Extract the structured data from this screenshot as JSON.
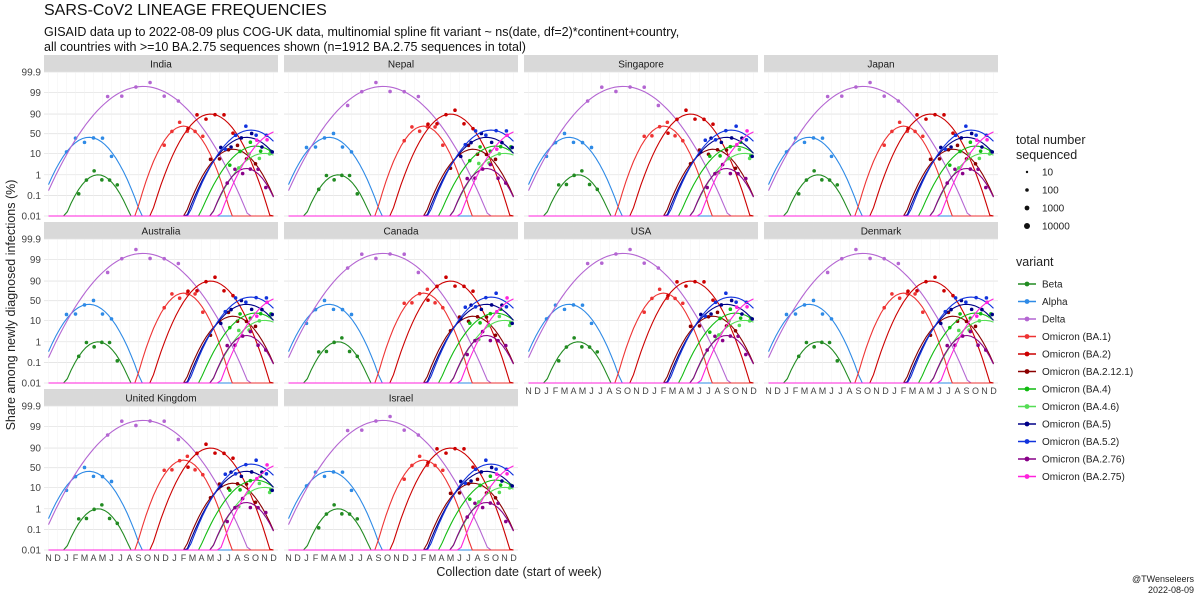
{
  "title": "SARS-CoV2 LINEAGE FREQUENCIES",
  "subtitle_line1": "GISAID data up to 2022-08-09 plus COG-UK data, multinomial spline fit variant ~ ns(date, df=2)*continent+country,",
  "subtitle_line2": "all countries with >=10 BA.2.75 sequences shown (n=1912 BA.2.75 sequences in total)",
  "credit_handle": "@TWenseleers",
  "credit_date": "2022-08-09",
  "chart_data": {
    "type": "line",
    "ylabel": "Share among newly diagnosed infections (%)",
    "xlabel": "Collection date (start of week)",
    "y_scale": "logit",
    "y_ticks": [
      0.01,
      0.1,
      1,
      10,
      50,
      90,
      99,
      99.9
    ],
    "y_tick_labels": [
      "0.01",
      "0.1",
      "1",
      "10",
      "50",
      "90",
      "99",
      "99.9"
    ],
    "x_tick_labels": [
      "N",
      "D",
      "J",
      "F",
      "M",
      "A",
      "M",
      "J",
      "J",
      "A",
      "S",
      "O",
      "N",
      "D",
      "J",
      "F",
      "M",
      "A",
      "M",
      "J",
      "J",
      "A",
      "S",
      "O",
      "N",
      "D"
    ],
    "x_range_months": [
      0,
      26
    ],
    "grid": true,
    "facets": [
      "India",
      "Nepal",
      "Singapore",
      "Japan",
      "Australia",
      "Canada",
      "USA",
      "Denmark",
      "United Kingdom",
      "Israel"
    ],
    "size_legend": {
      "title_line1": "total number",
      "title_line2": "sequenced",
      "levels": [
        "10",
        "100",
        "1000",
        "10000"
      ]
    },
    "variant_legend_title": "variant",
    "series": [
      {
        "name": "Beta",
        "color": "#228B22",
        "peak_month": 5.5,
        "width": 6,
        "peak_share": 1
      },
      {
        "name": "Alpha",
        "color": "#2E8AE6",
        "peak_month": 4.5,
        "width": 7,
        "peak_share": 40
      },
      {
        "name": "Delta",
        "color": "#B466D2",
        "peak_month": 10.5,
        "width": 11,
        "peak_share": 99.5
      },
      {
        "name": "Omicron (BA.1)",
        "color": "#EE3333",
        "peak_month": 15,
        "width": 6,
        "peak_share": 70
      },
      {
        "name": "Omicron (BA.2)",
        "color": "#CC0000",
        "peak_month": 18,
        "width": 7,
        "peak_share": 90
      },
      {
        "name": "Omicron (BA.2.12.1)",
        "color": "#8B0000",
        "peak_month": 20.5,
        "width": 7,
        "peak_share": 15
      },
      {
        "name": "Omicron (BA.4)",
        "color": "#11BB11",
        "peak_month": 23,
        "width": 8,
        "peak_share": 20
      },
      {
        "name": "Omicron (BA.4.6)",
        "color": "#55DD55",
        "peak_month": 24,
        "width": 8,
        "peak_share": 10
      },
      {
        "name": "Omicron (BA.5)",
        "color": "#000088",
        "peak_month": 22,
        "width": 8,
        "peak_share": 40
      },
      {
        "name": "Omicron (BA.5.2)",
        "color": "#1133DD",
        "peak_month": 22.5,
        "width": 8,
        "peak_share": 60
      },
      {
        "name": "Omicron (BA.2.76)",
        "color": "#880088",
        "peak_month": 22,
        "width": 6,
        "peak_share": 2
      },
      {
        "name": "Omicron (BA.2.75)",
        "color": "#FF22DD",
        "peak_month": 26,
        "width": 8,
        "peak_share": 60
      }
    ]
  }
}
